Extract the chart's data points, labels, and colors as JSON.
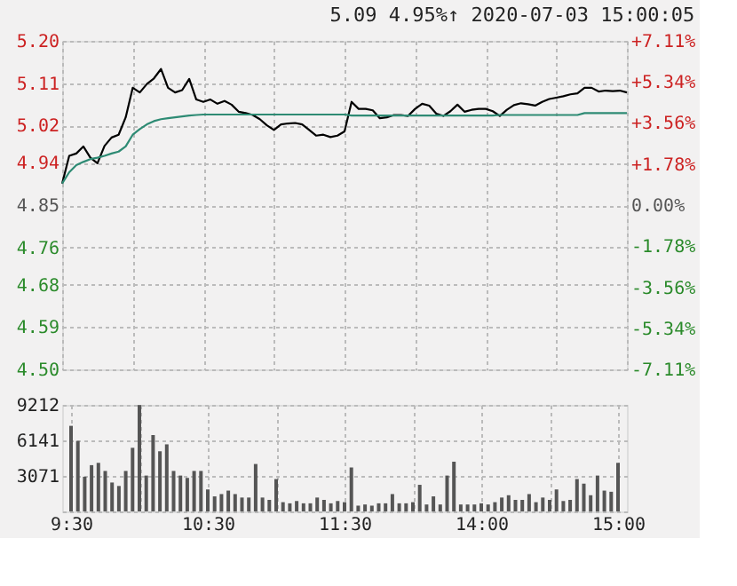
{
  "chart_data": [
    {
      "type": "line",
      "title": "5.09   4.95%↑   2020-07-03 15:00:05",
      "categories": [
        null,
        null,
        null,
        null,
        null,
        null,
        null,
        null,
        null,
        null,
        null,
        null,
        null,
        null,
        null,
        null,
        null,
        null,
        null,
        null,
        null,
        null,
        null,
        null,
        null,
        null,
        null,
        null,
        null,
        null,
        null,
        null,
        null,
        null,
        null,
        null,
        null,
        null,
        null,
        null,
        null,
        null,
        null,
        null,
        null,
        null,
        null,
        null,
        null,
        null,
        null,
        null,
        null,
        null,
        null,
        null,
        null,
        null,
        null,
        null,
        null,
        null,
        null,
        null,
        null,
        null,
        null,
        null,
        null,
        null,
        null,
        null,
        null,
        null,
        null,
        null,
        null,
        null,
        null,
        null,
        null
      ],
      "series": [
        {
          "color": "#000000",
          "values": [
            4.896,
            4.955,
            4.96,
            4.975,
            4.951,
            4.939,
            4.976,
            4.994,
            5.0,
            5.037,
            5.1,
            5.09,
            5.108,
            5.12,
            5.14,
            5.1,
            5.09,
            5.095,
            5.119,
            5.075,
            5.07,
            5.075,
            5.066,
            5.072,
            5.064,
            5.049,
            5.046,
            5.042,
            5.033,
            5.02,
            5.01,
            5.022,
            5.024,
            5.025,
            5.022,
            5.01,
            4.998,
            5.0,
            4.995,
            4.998,
            5.007,
            5.07,
            5.055,
            5.055,
            5.052,
            5.035,
            5.037,
            5.042,
            5.042,
            5.04,
            5.055,
            5.066,
            5.062,
            5.045,
            5.04,
            5.05,
            5.064,
            5.049,
            5.053,
            5.055,
            5.055,
            5.05,
            5.04,
            5.053,
            5.063,
            5.067,
            5.065,
            5.062,
            5.07,
            5.076,
            5.079,
            5.082,
            5.086,
            5.088,
            5.1,
            5.1,
            5.092,
            5.094,
            5.093,
            5.094,
            5.09
          ]
        },
        {
          "color": "#2e8b74",
          "values": [
            4.896,
            4.92,
            4.935,
            4.942,
            4.948,
            4.951,
            4.955,
            4.96,
            4.964,
            4.975,
            5.0,
            5.012,
            5.022,
            5.029,
            5.033,
            5.035,
            5.037,
            5.039,
            5.041,
            5.042,
            5.043,
            5.043,
            5.043,
            5.043,
            5.043,
            5.043,
            5.043,
            5.043,
            5.043,
            5.043,
            5.043,
            5.043,
            5.043,
            5.043,
            5.043,
            5.043,
            5.043,
            5.043,
            5.043,
            5.043,
            5.043,
            5.041,
            5.041,
            5.041,
            5.041,
            5.041,
            5.041,
            5.041,
            5.041,
            5.041,
            5.041,
            5.041,
            5.041,
            5.041,
            5.041,
            5.041,
            5.041,
            5.041,
            5.041,
            5.041,
            5.041,
            5.041,
            5.042,
            5.042,
            5.042,
            5.042,
            5.042,
            5.042,
            5.042,
            5.042,
            5.042,
            5.042,
            5.042,
            5.042,
            5.046,
            5.046,
            5.046,
            5.046,
            5.046,
            5.046,
            5.046
          ]
        }
      ],
      "ylim": [
        4.5,
        5.2
      ],
      "yticks": [
        {
          "value": 4.5,
          "label": "4.50"
        },
        4.59,
        4.68,
        4.76,
        4.85,
        4.94,
        5.02,
        5.11,
        {
          "value": 5.2,
          "label": "5.20"
        }
      ],
      "y2lim": [
        -7.11,
        7.11
      ],
      "y2ticks": [
        {
          "value": -7.11,
          "label": "-7.11%"
        },
        {
          "value": -5.34,
          "label": "-5.34%"
        },
        {
          "value": -3.56,
          "label": "-3.56%"
        },
        {
          "value": -1.78,
          "label": "-1.78%"
        },
        {
          "value": 0,
          "label": "0.00%"
        },
        {
          "value": 1.78,
          "label": "+1.78%"
        },
        {
          "value": 3.56,
          "label": "+3.56%"
        },
        {
          "value": 5.34,
          "label": "+5.34%"
        },
        {
          "value": 7.11,
          "label": "+7.11%"
        }
      ],
      "grid": true,
      "tick_labels": "y"
    },
    {
      "type": "bar",
      "color": "#555555",
      "categories": [
        "9:30",
        null,
        null,
        null,
        null,
        null,
        null,
        null,
        null,
        null,
        null,
        null,
        null,
        null,
        null,
        null,
        null,
        null,
        null,
        null,
        "10:30",
        null,
        null,
        null,
        null,
        null,
        null,
        null,
        null,
        null,
        null,
        null,
        null,
        null,
        null,
        null,
        null,
        null,
        null,
        null,
        "11:30",
        null,
        null,
        null,
        null,
        null,
        null,
        null,
        null,
        null,
        null,
        null,
        null,
        null,
        null,
        null,
        null,
        null,
        null,
        null,
        "14:00",
        null,
        null,
        null,
        null,
        null,
        null,
        null,
        null,
        null,
        null,
        null,
        null,
        null,
        null,
        null,
        null,
        null,
        null,
        null,
        "15:00"
      ],
      "values": [
        7400,
        6100,
        3000,
        4000,
        4200,
        3500,
        2500,
        2200,
        3500,
        5500,
        9200,
        3100,
        6600,
        5200,
        5800,
        3500,
        3100,
        2900,
        3500,
        3500,
        1900,
        1300,
        1500,
        1800,
        1500,
        1200,
        1200,
        4100,
        1200,
        1000,
        2800,
        800,
        700,
        900,
        700,
        700,
        1200,
        1000,
        700,
        900,
        800,
        3800,
        500,
        600,
        500,
        700,
        700,
        1500,
        700,
        700,
        800,
        2300,
        600,
        1300,
        600,
        3100,
        4300,
        600,
        600,
        600,
        700,
        600,
        800,
        1200,
        1400,
        1000,
        1000,
        1500,
        800,
        1200,
        1000,
        1900,
        900,
        1000,
        2800,
        2400,
        1400,
        3100,
        1800,
        1700,
        4200
      ],
      "ylim": [
        0,
        9212
      ],
      "yticks": [
        {
          "value": 0,
          "label": null
        },
        3071,
        6141,
        9212
      ],
      "grid": true
    }
  ]
}
